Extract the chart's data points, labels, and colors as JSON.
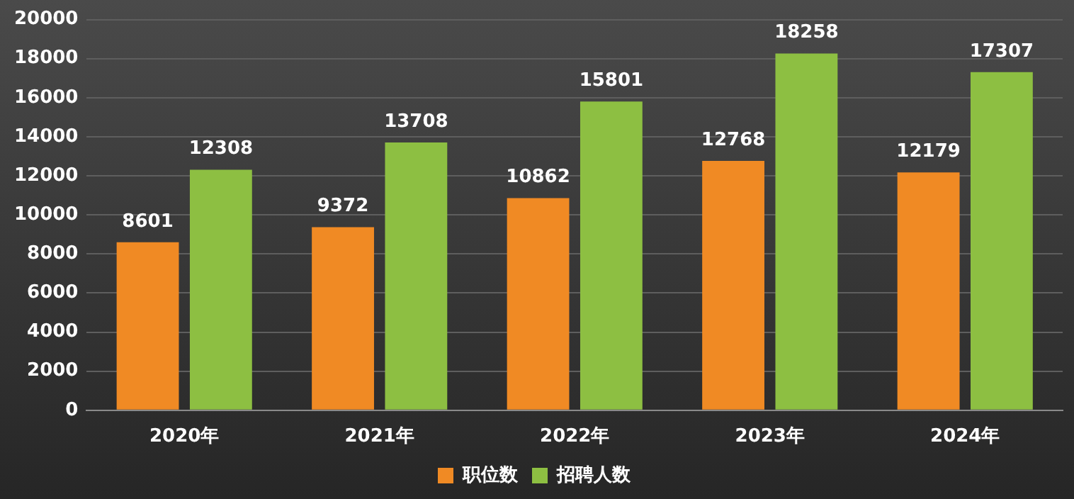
{
  "chart_data": {
    "type": "bar",
    "categories": [
      "2020年",
      "2021年",
      "2022年",
      "2023年",
      "2024年"
    ],
    "series": [
      {
        "name": "职位数",
        "color": "#f08a24",
        "values": [
          8601,
          9372,
          10862,
          12768,
          12179
        ]
      },
      {
        "name": "招聘人数",
        "color": "#8dbf42",
        "values": [
          12308,
          13708,
          15801,
          18258,
          17307
        ]
      }
    ],
    "ylim": [
      0,
      20000
    ],
    "yticks": [
      0,
      2000,
      4000,
      6000,
      8000,
      10000,
      12000,
      14000,
      16000,
      18000,
      20000
    ],
    "grid": "y",
    "legend": "bottom",
    "data_labels": true
  }
}
